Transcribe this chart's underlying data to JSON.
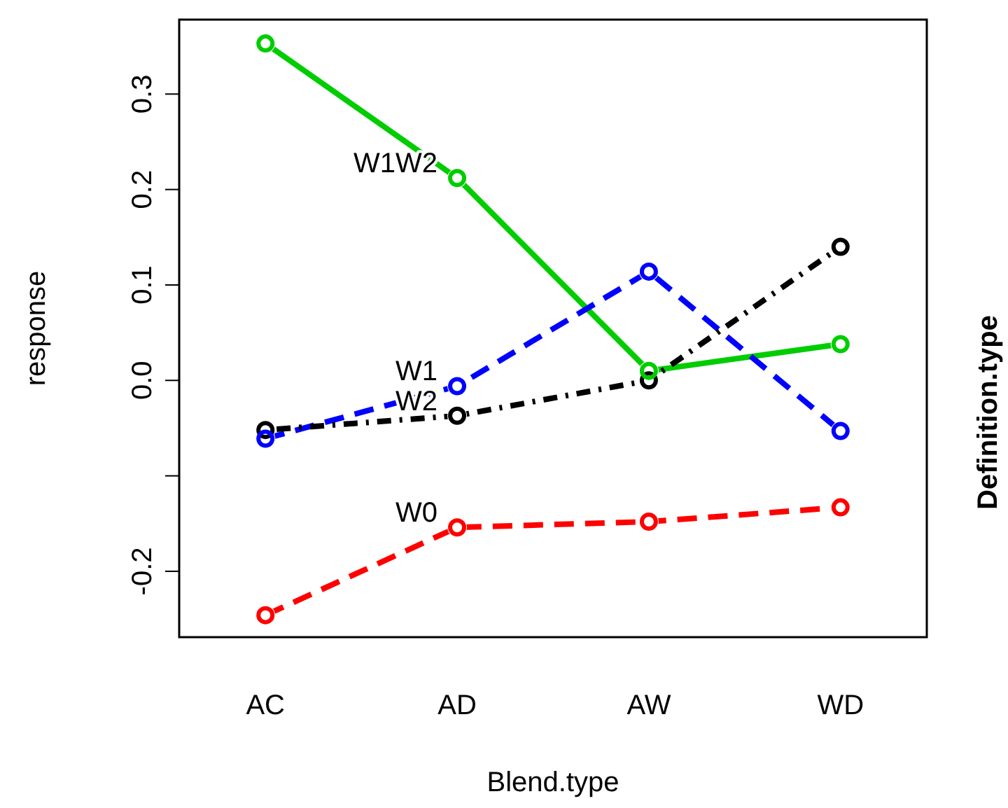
{
  "chart_data": {
    "type": "line",
    "xlabel": "Blend.type",
    "ylabel": "response",
    "legend_title": "Definition.type",
    "categories": [
      "AC",
      "AD",
      "AW",
      "WD"
    ],
    "ylim": [
      -0.269,
      0.378
    ],
    "yticks": [
      {
        "value": -0.2,
        "label": "-0.2"
      },
      {
        "value": -0.1,
        "label": null
      },
      {
        "value": 0,
        "label": "0.0"
      },
      {
        "value": 0.1,
        "label": "0.1"
      },
      {
        "value": 0.2,
        "label": "0.2"
      },
      {
        "value": 0.3,
        "label": "0.3"
      }
    ],
    "marker": "circle",
    "grid": false,
    "series": [
      {
        "name": "W1W2",
        "color": "#00cd00",
        "line_style": "solid",
        "values": [
          0.353,
          0.212,
          0.01,
          0.038
        ]
      },
      {
        "name": "W1",
        "color": "#0000ff",
        "line_style": "dashed",
        "values": [
          -0.061,
          -0.006,
          0.114,
          -0.053
        ]
      },
      {
        "name": "W2",
        "color": "#000000",
        "line_style": "dashdot",
        "values": [
          -0.052,
          -0.037,
          0.0,
          0.14
        ]
      },
      {
        "name": "W0",
        "color": "#ff0000",
        "line_style": "dashed",
        "values": [
          -0.246,
          -0.154,
          -0.148,
          -0.133
        ]
      }
    ]
  }
}
